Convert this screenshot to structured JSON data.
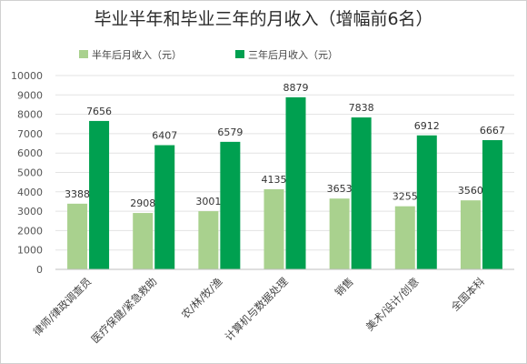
{
  "chart_data": {
    "type": "bar",
    "title": "毕业半年和毕业三年的月收入（增幅前6名）",
    "categories": [
      "律师/律政调查员",
      "医疗保健/紧急救助",
      "农/林/牧/渔",
      "计算机与数据处理",
      "销售",
      "美术/设计/创意",
      "全国本科"
    ],
    "series": [
      {
        "name": "半年后月收入（元）",
        "values": [
          3388,
          2908,
          3001,
          4135,
          3653,
          3255,
          3560
        ],
        "color": "#a9d18e"
      },
      {
        "name": "三年后月收入（元）",
        "values": [
          7656,
          6407,
          6579,
          8879,
          7838,
          6912,
          6667
        ],
        "color": "#00a050"
      }
    ],
    "ylim": [
      0,
      10000
    ],
    "yticks": [
      0,
      1000,
      2000,
      3000,
      4000,
      5000,
      6000,
      7000,
      8000,
      9000,
      10000
    ],
    "xlabel": "",
    "ylabel": "",
    "grid": true,
    "legend_position": "top-left"
  }
}
